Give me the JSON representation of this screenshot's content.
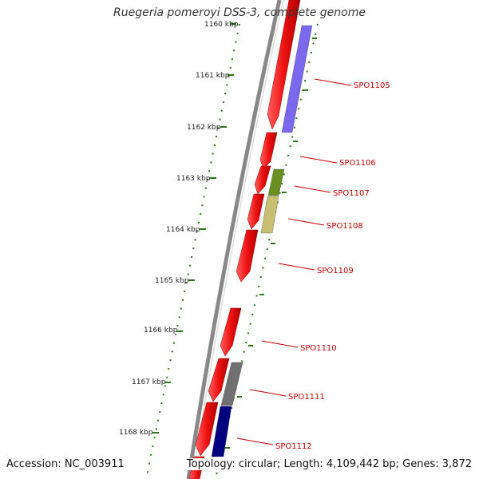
{
  "title": "Ruegeria pomeroyi DSS-3, complete genome",
  "footer": {
    "accession": "Accession: NC_003911",
    "topology": "Topology: circular; Length: 4,109,442 bp; Genes: 3,872"
  },
  "colors": {
    "backbone": "#888888",
    "tick": "#2a7a1a",
    "gene_forward": "#ee1111",
    "label": "#cc0000"
  },
  "kbp_labels": [
    "1160 kbp",
    "1161 kbp",
    "1162 kbp",
    "1163 kbp",
    "1164 kbp",
    "1165 kbp",
    "1166 kbp",
    "1167 kbp",
    "1168 kbp"
  ],
  "genes": [
    {
      "name": "SPO1105",
      "track": "reverse",
      "color": "#7b68ee"
    },
    {
      "name": "SPO1106",
      "track": "reverse",
      "color": "#ee1111"
    },
    {
      "name": "SPO1107",
      "track": "reverse",
      "color": "#6b8e23"
    },
    {
      "name": "SPO1108",
      "track": "reverse",
      "color": "#c8c070"
    },
    {
      "name": "SPO1109",
      "track": "reverse",
      "color": "#ee1111"
    },
    {
      "name": "SPO1110",
      "track": "reverse",
      "color": "#ee1111"
    },
    {
      "name": "SPO1111",
      "track": "reverse",
      "color": "#707070"
    },
    {
      "name": "SPO1112",
      "track": "reverse",
      "color": "#000080"
    }
  ]
}
